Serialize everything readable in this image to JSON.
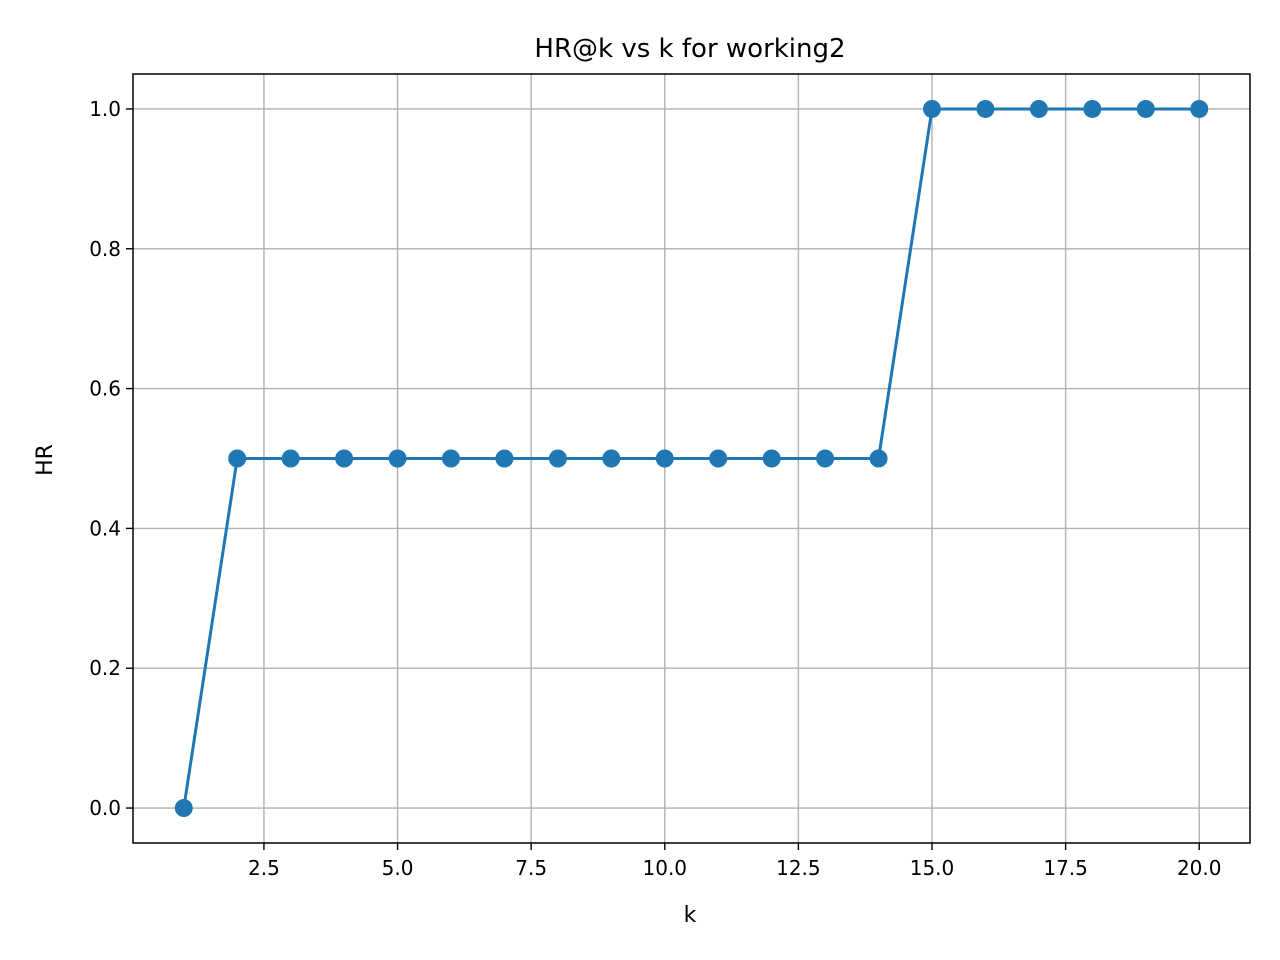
{
  "chart_data": {
    "type": "line",
    "title": "HR@k vs k for working2",
    "xlabel": "k",
    "ylabel": "HR",
    "xlim": [
      0.05,
      20.95
    ],
    "ylim": [
      -0.05,
      1.05
    ],
    "grid": true,
    "x_ticks": [
      2.5,
      5.0,
      7.5,
      10.0,
      12.5,
      15.0,
      17.5,
      20.0
    ],
    "x_tick_labels": [
      "2.5",
      "5.0",
      "7.5",
      "10.0",
      "12.5",
      "15.0",
      "17.5",
      "20.0"
    ],
    "y_ticks": [
      0.0,
      0.2,
      0.4,
      0.6,
      0.8,
      1.0
    ],
    "y_tick_labels": [
      "0.0",
      "0.2",
      "0.4",
      "0.6",
      "0.8",
      "1.0"
    ],
    "series": [
      {
        "color": "#1f77b4",
        "marker": "circle",
        "x": [
          1,
          2,
          3,
          4,
          5,
          6,
          7,
          8,
          9,
          10,
          11,
          12,
          13,
          14,
          15,
          16,
          17,
          18,
          19,
          20
        ],
        "y": [
          0.0,
          0.5,
          0.5,
          0.5,
          0.5,
          0.5,
          0.5,
          0.5,
          0.5,
          0.5,
          0.5,
          0.5,
          0.5,
          0.5,
          1.0,
          1.0,
          1.0,
          1.0,
          1.0,
          1.0
        ]
      }
    ]
  }
}
